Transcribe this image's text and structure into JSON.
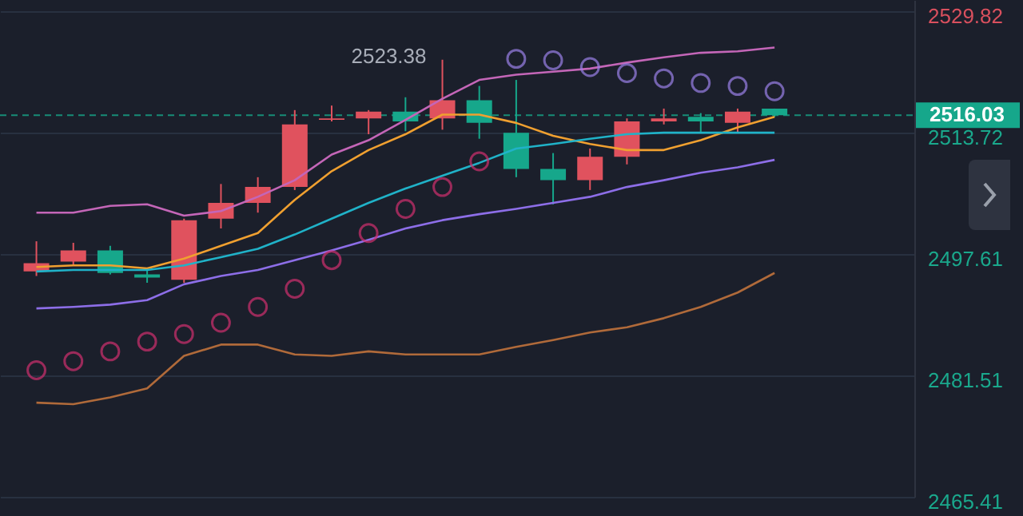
{
  "chart_data": {
    "type": "candlestick",
    "categories": [
      null,
      null,
      null,
      null,
      null,
      null,
      null,
      null,
      null,
      null,
      null,
      null,
      null,
      null,
      null,
      null,
      null,
      null,
      null,
      null,
      null
    ],
    "ohlc": [
      [
        2495.3,
        2499.3,
        2494.7,
        2496.4
      ],
      [
        2496.6,
        2499.1,
        2496.1,
        2498.1
      ],
      [
        2498.1,
        2498.7,
        2494.9,
        2495.1
      ],
      [
        2494.9,
        2495.7,
        2493.8,
        2494.5
      ],
      [
        2494.2,
        2502.3,
        2493.8,
        2502.1
      ],
      [
        2502.3,
        2506.9,
        2501.0,
        2504.4
      ],
      [
        2504.4,
        2507.8,
        2503.1,
        2506.5
      ],
      [
        2506.5,
        2516.7,
        2506.1,
        2514.8
      ],
      [
        2515.4,
        2517.3,
        2515.2,
        2515.6
      ],
      [
        2515.6,
        2516.7,
        2513.5,
        2516.5
      ],
      [
        2516.5,
        2518.4,
        2513.9,
        2515.2
      ],
      [
        2515.6,
        2523.38,
        2514.1,
        2518.0
      ],
      [
        2518.0,
        2519.9,
        2512.9,
        2515.0
      ],
      [
        2513.7,
        2520.7,
        2507.8,
        2508.9
      ],
      [
        2508.9,
        2511.0,
        2504.2,
        2507.4
      ],
      [
        2507.4,
        2511.6,
        2506.1,
        2510.5
      ],
      [
        2510.5,
        2515.6,
        2509.5,
        2515.2
      ],
      [
        2515.2,
        2516.9,
        2514.8,
        2515.6
      ],
      [
        2515.8,
        2516.3,
        2513.7,
        2515.2
      ],
      [
        2515.0,
        2516.9,
        2513.7,
        2516.5
      ],
      [
        2516.9,
        2516.9,
        2515.8,
        2516.03
      ]
    ],
    "colors": [
      "#e0525e",
      "#e0525e",
      "#16a78b",
      "#16a78b",
      "#e0525e",
      "#e0525e",
      "#e0525e",
      "#e0525e",
      "#e0525e",
      "#e0525e",
      "#16a78b",
      "#e0525e",
      "#16a78b",
      "#16a78b",
      "#16a78b",
      "#e0525e",
      "#e0525e",
      "#e0525e",
      "#16a78b",
      "#e0525e",
      "#16a78b"
    ],
    "series": [
      {
        "type": "line",
        "color": "#c466b8",
        "values": [
          2503.1,
          2503.1,
          2504.0,
          2504.2,
          2502.7,
          2503.3,
          2505.2,
          2507.4,
          2510.8,
          2512.7,
          2515.4,
          2518.2,
          2520.7,
          2521.4,
          2521.8,
          2522.2,
          2523.0,
          2523.7,
          2524.3,
          2524.5,
          2525.0
        ]
      },
      {
        "type": "line",
        "color": "#f0a030",
        "values": [
          2495.9,
          2496.1,
          2496.1,
          2495.7,
          2497.0,
          2498.7,
          2500.4,
          2504.8,
          2508.6,
          2511.4,
          2513.5,
          2516.1,
          2516.1,
          2515.0,
          2513.3,
          2512.2,
          2511.4,
          2511.4,
          2512.7,
          2514.4,
          2515.8
        ]
      },
      {
        "type": "line",
        "color": "#20b2c8",
        "values": [
          2495.3,
          2495.5,
          2495.5,
          2495.5,
          2496.1,
          2497.2,
          2498.3,
          2500.2,
          2502.3,
          2504.4,
          2506.3,
          2508.0,
          2509.7,
          2511.6,
          2512.2,
          2512.9,
          2513.5,
          2513.7,
          2513.7,
          2513.7,
          2513.7
        ]
      },
      {
        "type": "line",
        "color": "#8d6ee8",
        "values": [
          2490.4,
          2490.6,
          2490.9,
          2491.5,
          2493.6,
          2494.7,
          2495.5,
          2496.8,
          2498.1,
          2499.5,
          2501.0,
          2502.1,
          2502.9,
          2503.6,
          2504.4,
          2505.2,
          2506.5,
          2507.4,
          2508.4,
          2509.1,
          2510.1
        ]
      },
      {
        "type": "line",
        "color": "#b06a3a",
        "values": [
          2477.9,
          2477.7,
          2478.6,
          2479.8,
          2484.1,
          2485.6,
          2485.6,
          2484.3,
          2484.1,
          2484.7,
          2484.3,
          2484.3,
          2484.3,
          2485.3,
          2486.2,
          2487.2,
          2487.9,
          2489.1,
          2490.6,
          2492.5,
          2495.1
        ]
      },
      {
        "type": "scatter",
        "marker": "circle",
        "color": "#d0306e",
        "values": [
          2482.2,
          2483.4,
          2484.7,
          2486.0,
          2487.0,
          2488.5,
          2490.6,
          2493.0,
          2496.8,
          2500.4,
          2503.6,
          2506.5,
          2509.9,
          null,
          null,
          null,
          null,
          null,
          null,
          null,
          null
        ]
      },
      {
        "type": "scatter",
        "marker": "circle",
        "color": "#9a80e8",
        "values": [
          null,
          null,
          null,
          null,
          null,
          null,
          null,
          null,
          null,
          null,
          null,
          null,
          null,
          2523.5,
          2523.3,
          2522.4,
          2521.6,
          2520.9,
          2520.3,
          2519.9,
          2519.2
        ]
      }
    ],
    "ylim": [
      2465.41,
      2531.3
    ],
    "yticks": [
      2465.41,
      2481.51,
      2497.61,
      2513.72,
      2529.82
    ],
    "grid": "y",
    "tick_labels": "y",
    "ref_lines": [
      {
        "axis": "y",
        "value": 2516.03,
        "label": "2516.03",
        "color": "#16a78b",
        "line_style": "dashed"
      }
    ],
    "annotations": [
      "2523.38"
    ]
  }
}
